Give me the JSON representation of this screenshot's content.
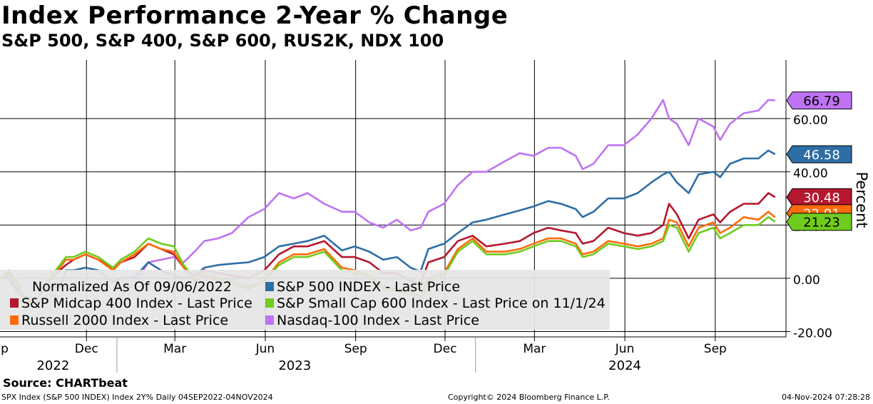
{
  "title": "Index Performance 2-Year % Change",
  "subtitle": "S&P 500, S&P 400, S&P 600, RUS2K, NDX 100",
  "source": "Source: CHARTbeat",
  "footer": {
    "left": "SPX Index (S&P 500 INDEX) Index 2Y%  Daily 04SEP2022-04NOV2024",
    "middle": "Copyright© 2024 Bloomberg Finance L.P.",
    "right": "04-Nov-2024 07:28:28"
  },
  "chart_data": {
    "type": "line",
    "ylabel": "Percent",
    "ylim": [
      -22,
      82
    ],
    "yticks": [
      -20,
      0,
      20,
      40,
      60
    ],
    "ytick_labels": [
      "-20.00",
      "0.00",
      "20.00",
      "40.00",
      "60.00"
    ],
    "xlim": [
      "2022-09-04",
      "2024-11-12"
    ],
    "xtick_months": [
      {
        "date": "2022-09-01",
        "label": "Sep"
      },
      {
        "date": "2022-12-01",
        "label": "Dec"
      },
      {
        "date": "2023-03-01",
        "label": "Mar"
      },
      {
        "date": "2023-06-01",
        "label": "Jun"
      },
      {
        "date": "2023-09-01",
        "label": "Sep"
      },
      {
        "date": "2023-12-01",
        "label": "Dec"
      },
      {
        "date": "2024-03-01",
        "label": "Mar"
      },
      {
        "date": "2024-06-01",
        "label": "Jun"
      },
      {
        "date": "2024-09-01",
        "label": "Sep"
      }
    ],
    "xtick_years": [
      {
        "center": "2022-10-28",
        "label": "2022"
      },
      {
        "center": "2023-07-01",
        "label": "2023"
      },
      {
        "center": "2024-06-01",
        "label": "2024"
      }
    ],
    "year_dividers": [
      "2023-01-01",
      "2024-01-01"
    ],
    "grid": true,
    "legend_position": "bottom-left",
    "legend_title": "Normalized As Of 09/06/2022",
    "dates": [
      "2022-09-06",
      "2022-09-13",
      "2022-09-21",
      "2022-09-30",
      "2022-10-12",
      "2022-10-24",
      "2022-11-04",
      "2022-11-10",
      "2022-11-18",
      "2022-11-30",
      "2022-12-13",
      "2022-12-28",
      "2023-01-05",
      "2023-01-19",
      "2023-02-02",
      "2023-02-15",
      "2023-02-28",
      "2023-03-10",
      "2023-03-21",
      "2023-03-31",
      "2023-04-14",
      "2023-04-28",
      "2023-05-15",
      "2023-05-31",
      "2023-06-15",
      "2023-06-30",
      "2023-07-14",
      "2023-07-31",
      "2023-08-18",
      "2023-08-31",
      "2023-09-15",
      "2023-09-29",
      "2023-10-13",
      "2023-10-27",
      "2023-11-06",
      "2023-11-14",
      "2023-11-30",
      "2023-12-14",
      "2023-12-29",
      "2024-01-12",
      "2024-01-31",
      "2024-02-15",
      "2024-02-29",
      "2024-03-15",
      "2024-03-28",
      "2024-04-12",
      "2024-04-19",
      "2024-04-30",
      "2024-05-15",
      "2024-05-31",
      "2024-06-14",
      "2024-06-28",
      "2024-07-10",
      "2024-07-16",
      "2024-07-24",
      "2024-08-05",
      "2024-08-15",
      "2024-08-30",
      "2024-09-06",
      "2024-09-16",
      "2024-09-30",
      "2024-10-15",
      "2024-10-25",
      "2024-11-01"
    ],
    "series": [
      {
        "name": "S&P 500 INDEX - Last Price",
        "color": "#2e6ea6",
        "last_label": "46.58",
        "values": [
          0.0,
          0.5,
          -4,
          -7,
          -7.5,
          -3,
          -3.5,
          3,
          3,
          4,
          3,
          -1.5,
          0,
          0.5,
          6,
          3,
          1,
          0,
          1,
          4,
          5,
          5.5,
          6,
          8,
          12,
          13,
          14,
          16,
          10.5,
          12,
          10,
          7,
          8,
          4,
          2.5,
          11,
          13,
          17,
          21,
          22,
          24,
          25.5,
          27,
          29,
          28,
          26,
          23,
          25,
          30,
          30,
          32,
          36,
          39,
          40,
          36,
          32,
          39,
          40,
          38,
          43,
          45,
          45,
          48,
          46.58
        ]
      },
      {
        "name": "S&P Midcap 400 Index - Last Price",
        "color": "#b5172e",
        "last_label": "30.48",
        "values": [
          0.0,
          2,
          -2,
          -8,
          -7,
          -1,
          3,
          5,
          7,
          9,
          7,
          4,
          6,
          8,
          13,
          11,
          9,
          4,
          1,
          3,
          2,
          1,
          0,
          3,
          9,
          12,
          12,
          14,
          8,
          8,
          6,
          2,
          2,
          -1,
          -2,
          6,
          8,
          14,
          16,
          12,
          13,
          14,
          17,
          19,
          18,
          17,
          13,
          14,
          19,
          17,
          16,
          17,
          20,
          28,
          24,
          15,
          22,
          24,
          21,
          25,
          28,
          28,
          32,
          30.48
        ]
      },
      {
        "name": "S&P Small Cap 600 Index - Last Price on 11/1/24",
        "color": "#6fcb1e",
        "last_label": "21.23",
        "values": [
          0.0,
          3,
          -1,
          -8,
          -7,
          0,
          5,
          8,
          8,
          10,
          8,
          4,
          7,
          10,
          15,
          13,
          12,
          5,
          0,
          2,
          0,
          -1,
          -3,
          -1,
          5,
          8,
          8,
          10,
          3,
          2,
          0,
          -4,
          -5,
          -6,
          -8,
          -1,
          1,
          10,
          14,
          9,
          9,
          10,
          12,
          14,
          14,
          12,
          8,
          9,
          13,
          12,
          11,
          12,
          14,
          20,
          19,
          10,
          17,
          19,
          15,
          17,
          20,
          20,
          23,
          21.23
        ]
      },
      {
        "name": "Russell 2000 Index - Last Price",
        "color": "#ff6a0a",
        "last_label": "22.91",
        "values": [
          0.0,
          3,
          -2,
          -9,
          -8,
          -1,
          4,
          7,
          7,
          9,
          7,
          3,
          6,
          9,
          13,
          11,
          10,
          4,
          -1,
          1,
          -1,
          -2,
          -4,
          -1,
          6,
          9,
          9,
          11,
          4,
          3,
          1,
          -3,
          -4,
          -5,
          -7,
          0,
          2,
          11,
          15,
          10,
          10,
          11,
          13,
          15,
          15,
          13,
          9,
          10,
          14,
          13,
          12,
          13,
          15,
          22,
          21,
          12,
          19,
          21,
          17,
          19,
          23,
          22,
          25,
          22.91
        ]
      },
      {
        "name": "Nasdaq-100 Index - Last Price",
        "color": "#bf73f2",
        "last_label": "66.79",
        "values": [
          0.0,
          0,
          -5,
          -8,
          -9,
          -6,
          -7,
          -3,
          -2,
          -2,
          -4,
          -8,
          -7,
          -2,
          6,
          7,
          8,
          6,
          10,
          14,
          15,
          17,
          23,
          26,
          32,
          30,
          32,
          28,
          25,
          25,
          21,
          19,
          22,
          18,
          19,
          25,
          28,
          35,
          40,
          40,
          44,
          47,
          46,
          49,
          49,
          46,
          41,
          43,
          50,
          50,
          54,
          60,
          67,
          60,
          58,
          50,
          60,
          57,
          52,
          58,
          62,
          63,
          67,
          66.79
        ]
      }
    ]
  }
}
